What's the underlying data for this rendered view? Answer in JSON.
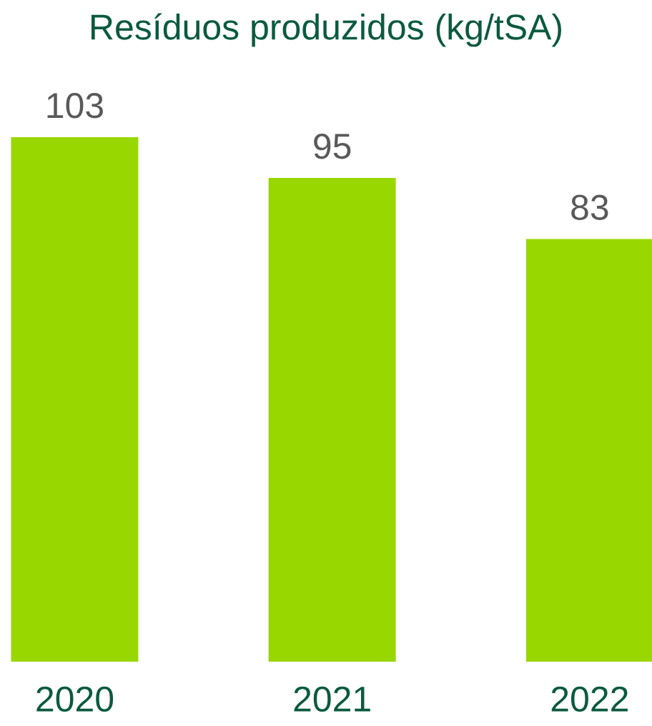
{
  "chart_data": {
    "type": "bar",
    "title": "Resíduos produzidos (kg/tSA)",
    "categories": [
      "2020",
      "2021",
      "2022"
    ],
    "values": [
      103,
      95,
      83
    ],
    "color": "#99d700",
    "data_labels": true,
    "grid": false,
    "legend": false
  }
}
